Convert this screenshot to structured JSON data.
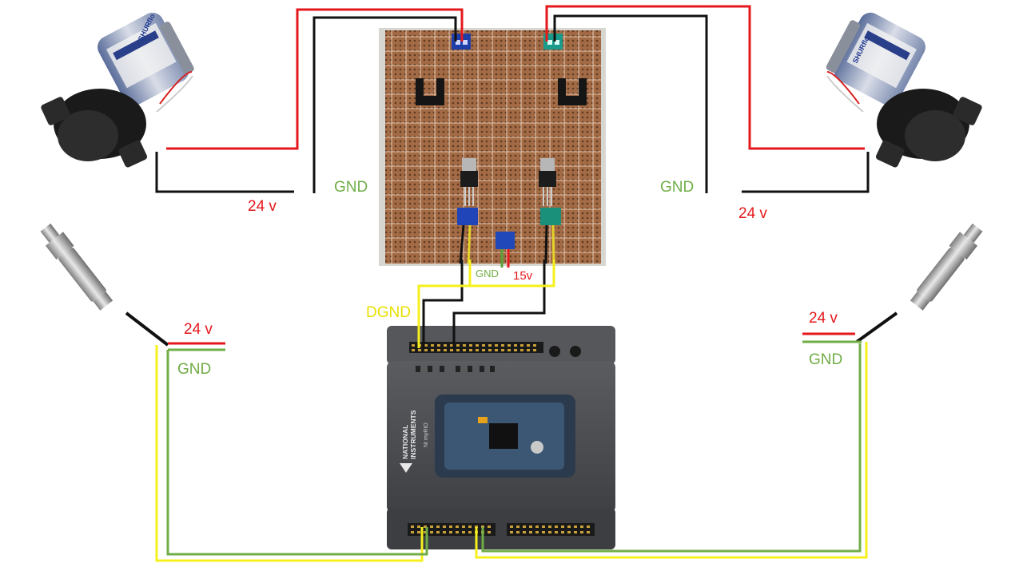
{
  "labels": {
    "left_gnd": "GND",
    "left_24v": "24 v",
    "right_gnd": "GND",
    "right_24v": "24 v",
    "board_gnd": "GND",
    "board_15v": "15v",
    "dgnd": "DGND",
    "left_sensor_24v": "24 v",
    "left_sensor_gnd": "GND",
    "right_sensor_24v": "24 v",
    "right_sensor_gnd": "GND"
  },
  "device": {
    "brand_line1": "NATIONAL",
    "brand_line2": "INSTRUMENTS",
    "model": "NI myRIO"
  },
  "pump_brand": "SHURflo",
  "colors": {
    "red": "#e4181c",
    "black": "#111111",
    "yellow": "#f5f01c",
    "green": "#71ad47",
    "dgnd_text": "#e8e000",
    "board": "#a06a44",
    "device_body": "#4a4c50"
  }
}
